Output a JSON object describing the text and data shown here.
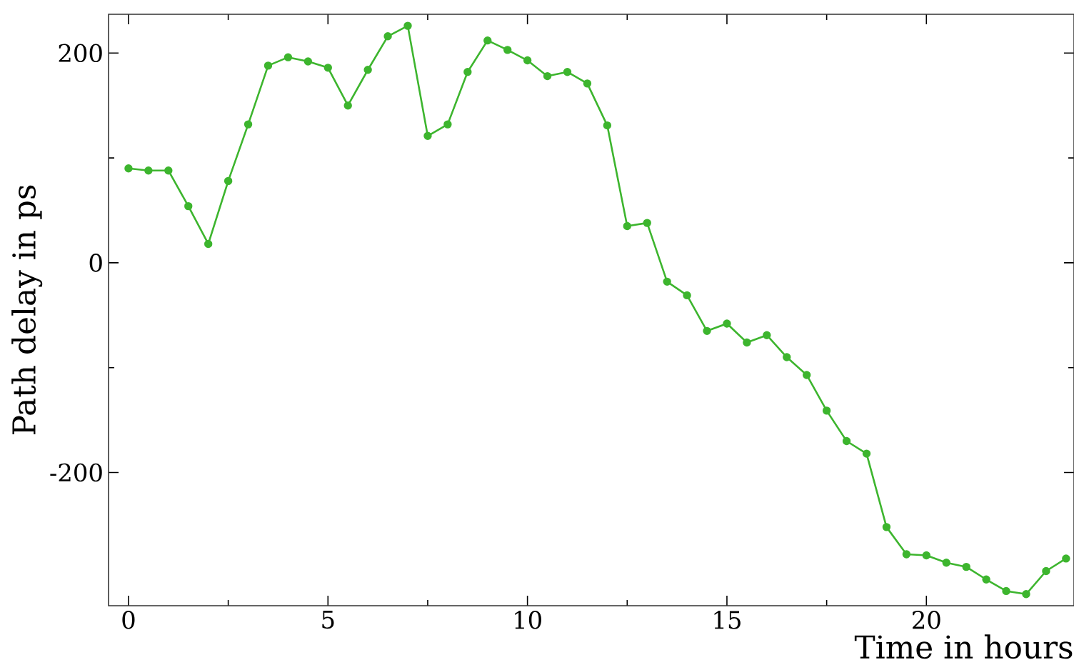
{
  "chart_data": {
    "type": "line",
    "xlabel": "Time in hours",
    "ylabel": "Path delay in ps",
    "x": [
      0,
      0.5,
      1,
      1.5,
      2,
      2.5,
      3,
      3.5,
      4,
      4.5,
      5,
      5.5,
      6,
      6.5,
      7,
      7.5,
      8,
      8.5,
      9,
      9.5,
      10,
      10.5,
      11,
      11.5,
      12,
      12.5,
      13,
      13.5,
      14,
      14.5,
      15,
      15.5,
      16,
      16.5,
      17,
      17.5,
      18,
      18.5,
      19,
      19.5,
      20,
      20.5,
      21,
      21.5,
      22,
      22.5,
      23,
      23.5
    ],
    "series": [
      {
        "color": "#3db52e",
        "values": [
          90,
          88,
          88,
          54,
          18,
          78,
          132,
          188,
          196,
          192,
          186,
          150,
          184,
          216,
          226,
          121,
          132,
          182,
          212,
          203,
          193,
          178,
          182,
          171,
          131,
          35,
          38,
          -18,
          -31,
          -65,
          -58,
          -76,
          -69,
          -90,
          -107,
          -141,
          -170,
          -182,
          -252,
          -278,
          -279,
          -286,
          -290,
          -302,
          -313,
          -316,
          -294,
          -282
        ]
      }
    ],
    "xlim": [
      -0.5,
      23.7
    ],
    "ylim": [
      -327,
      237
    ],
    "xticks": [
      0,
      5,
      10,
      15,
      20
    ],
    "yticks": [
      -200,
      0,
      200
    ],
    "grid": false,
    "marker": "circle",
    "line_style": "solid"
  }
}
